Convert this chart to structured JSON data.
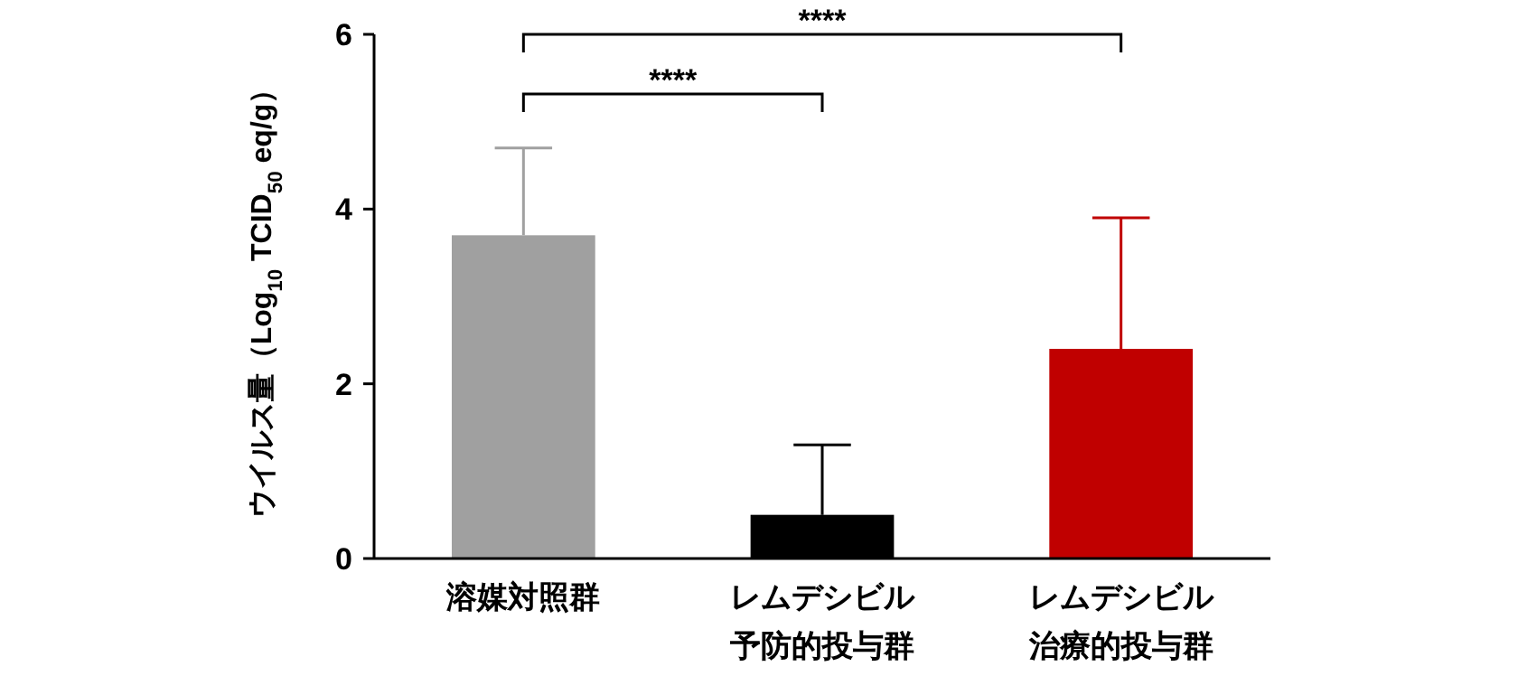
{
  "chart_data": {
    "type": "bar",
    "ylabel": "ウイルス量（Log$_{10}$ TCID$_{50}$ eq/g）",
    "categories": [
      "溶媒対照群",
      "レムデシビル予防的投与群",
      "レムデシビル治療的投与群"
    ],
    "values": [
      3.7,
      0.5,
      2.4
    ],
    "colors": [
      "#a0a0a0",
      "#000000",
      "#c00000"
    ],
    "errors": [
      [
        3.7,
        4.7
      ],
      [
        0.5,
        1.3
      ],
      [
        2.4,
        3.9
      ]
    ],
    "ylim": [
      0,
      6
    ],
    "yticks": [
      0,
      2,
      4,
      6
    ],
    "grid": false,
    "annotations": [
      "****",
      "****"
    ]
  }
}
